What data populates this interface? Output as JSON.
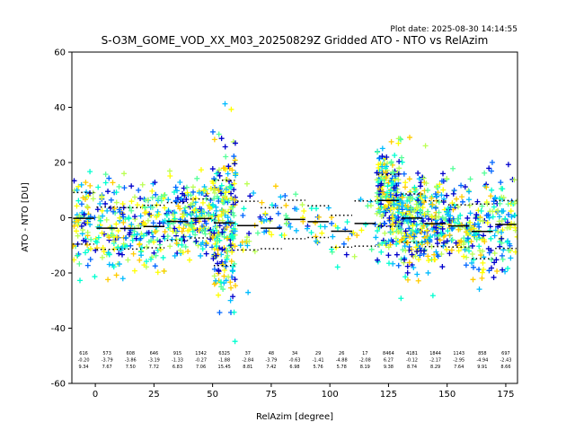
{
  "chart_data": {
    "type": "scatter",
    "title": "S-O3M_GOME_VOD_XX_M03_20250829Z Gridded ATO - NTO vs RelAzim",
    "subtitle": "Plot date: 2025-08-30 14:14:55",
    "xlabel": "RelAzim [degree]",
    "ylabel": "ATO - NTO [DU]",
    "xlim": [
      -10,
      180
    ],
    "ylim": [
      -60,
      60
    ],
    "xticks": [
      0,
      25,
      50,
      75,
      100,
      125,
      150,
      175
    ],
    "yticks": [
      -60,
      -40,
      -20,
      0,
      20,
      40,
      60
    ],
    "grid": false,
    "marker": "+",
    "colors": [
      "#0000cc",
      "#0066ff",
      "#00bbff",
      "#00ffd0",
      "#55ff99",
      "#bbff55",
      "#ffff00",
      "#ffcc00"
    ],
    "bins": [
      {
        "x": -5,
        "count": "616",
        "mean": "-0.20",
        "std": "9.34"
      },
      {
        "x": 5,
        "count": "573",
        "mean": "-3.79",
        "std": "7.67"
      },
      {
        "x": 15,
        "count": "608",
        "mean": "-3.86",
        "std": "7.50"
      },
      {
        "x": 25,
        "count": "646",
        "mean": "-3.19",
        "std": "7.72"
      },
      {
        "x": 35,
        "count": "915",
        "mean": "-1.33",
        "std": "6.83"
      },
      {
        "x": 45,
        "count": "1342",
        "mean": "-0.27",
        "std": "7.06"
      },
      {
        "x": 55,
        "count": "6325",
        "mean": "-1.88",
        "std": "15.45"
      },
      {
        "x": 65,
        "count": "37",
        "mean": "-2.84",
        "std": "8.81"
      },
      {
        "x": 75,
        "count": "48",
        "mean": "-3.79",
        "std": "7.42"
      },
      {
        "x": 85,
        "count": "34",
        "mean": "-0.63",
        "std": "6.98"
      },
      {
        "x": 95,
        "count": "29",
        "mean": "-1.41",
        "std": "5.76"
      },
      {
        "x": 105,
        "count": "26",
        "mean": "-4.88",
        "std": "5.78"
      },
      {
        "x": 115,
        "count": "17",
        "mean": "-2.08",
        "std": "8.19"
      },
      {
        "x": 125,
        "count": "8464",
        "mean": "6.27",
        "std": "9.38"
      },
      {
        "x": 135,
        "count": "4181",
        "mean": "-0.12",
        "std": "8.74"
      },
      {
        "x": 145,
        "count": "1844",
        "mean": "-2.17",
        "std": "8.29"
      },
      {
        "x": 155,
        "count": "1143",
        "mean": "-2.95",
        "std": "7.64"
      },
      {
        "x": 165,
        "count": "858",
        "mean": "-4.94",
        "std": "9.91"
      },
      {
        "x": 175,
        "count": "697",
        "mean": "-2.43",
        "std": "8.66"
      }
    ]
  }
}
